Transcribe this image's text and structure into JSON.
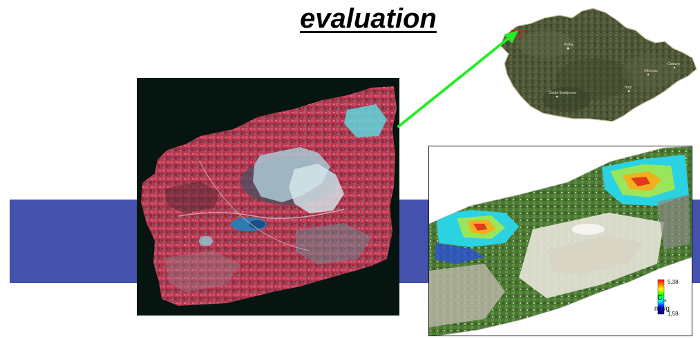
{
  "title": "evaluation",
  "colors": {
    "band": "#4452ad",
    "arrow": "#22ee22",
    "mosaic_background": "#061510"
  },
  "czech_map": {
    "place_labels": [
      "Praha",
      "Brno",
      "České Budějovice",
      "Olomouc",
      "Ostrava"
    ]
  },
  "soil_map": {
    "legend": {
      "max": "5,38",
      "min": "1,58",
      "symbol": "C",
      "symbol_subscript": "ox",
      "unit": "mg/g"
    }
  }
}
